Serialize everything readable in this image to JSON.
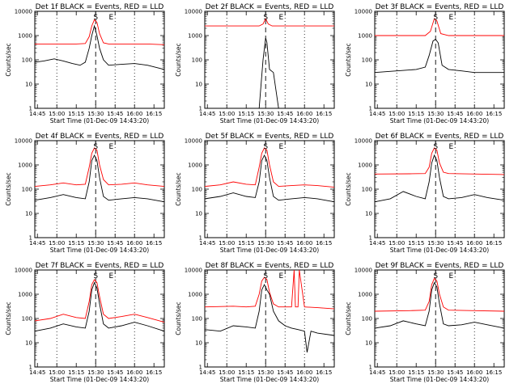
{
  "figure": {
    "xlabel": "Start Time (01-Dec-09 14:43:20)",
    "ylabel": "Counts/sec",
    "x_tick_labels": [
      "14:45",
      "15:00",
      "15:15",
      "15:30",
      "15:45",
      "16:00",
      "16:15"
    ],
    "y_tick_labels": [
      "1",
      "10",
      "100",
      "1000",
      "10000"
    ],
    "marker_labels": [
      "S",
      "E"
    ],
    "colors": {
      "events": "#000000",
      "lld": "#ff0000"
    }
  },
  "chart_data": [
    {
      "type": "line",
      "title": "Det 1f BLACK = Events, RED = LLD",
      "xlabel": "Start Time (01-Dec-09 14:43:20)",
      "ylabel": "Counts/sec",
      "yscale": "log",
      "ylim": [
        1,
        10000
      ],
      "x_range": [
        "14:43",
        "16:23"
      ],
      "vertical_lines": {
        "dotted": [
          "15:00",
          "15:45",
          "16:00"
        ],
        "dashed": "15:30"
      },
      "markers": [
        {
          "label": "S",
          "x": "15:30"
        },
        {
          "label": "E",
          "x": "15:42"
        }
      ],
      "series": [
        {
          "name": "LLD",
          "color": "#ff0000",
          "x": [
            "14:43",
            "14:55",
            "15:05",
            "15:15",
            "15:22",
            "15:25",
            "15:27",
            "15:29",
            "15:31",
            "15:33",
            "15:36",
            "15:40",
            "15:50",
            "16:00",
            "16:10",
            "16:23"
          ],
          "y": [
            450,
            450,
            450,
            450,
            470,
            900,
            2500,
            4500,
            3500,
            1200,
            500,
            450,
            450,
            450,
            450,
            420
          ]
        },
        {
          "name": "Events",
          "color": "#000000",
          "x": [
            "14:43",
            "14:50",
            "14:58",
            "15:05",
            "15:12",
            "15:18",
            "15:22",
            "15:25",
            "15:27",
            "15:29",
            "15:31",
            "15:33",
            "15:36",
            "15:40",
            "15:50",
            "16:00",
            "16:10",
            "16:23"
          ],
          "y": [
            80,
            90,
            110,
            90,
            70,
            60,
            80,
            300,
            1000,
            2500,
            1000,
            300,
            100,
            60,
            65,
            70,
            60,
            40
          ]
        }
      ]
    },
    {
      "type": "line",
      "title": "Det 2f BLACK = Events, RED = LLD",
      "xlabel": "Start Time (01-Dec-09 14:43:20)",
      "ylabel": "Counts/sec",
      "yscale": "log",
      "ylim": [
        1,
        10000
      ],
      "x_range": [
        "14:43",
        "16:23"
      ],
      "vertical_lines": {
        "dotted": [
          "15:00",
          "15:45",
          "16:00"
        ],
        "dashed": "15:30"
      },
      "markers": [
        {
          "label": "S",
          "x": "15:30"
        },
        {
          "label": "E",
          "x": "15:42"
        }
      ],
      "series": [
        {
          "name": "LLD",
          "color": "#ff0000",
          "x": [
            "14:43",
            "15:10",
            "15:25",
            "15:28",
            "15:30",
            "15:32",
            "15:35",
            "16:23"
          ],
          "y": [
            2500,
            2500,
            2500,
            3000,
            5000,
            3000,
            2500,
            2500
          ]
        },
        {
          "name": "Events",
          "color": "#000000",
          "x": [
            "14:43",
            "15:00",
            "15:20",
            "15:25",
            "15:28",
            "15:30",
            "15:31",
            "15:33",
            "15:36",
            "15:40",
            "16:00",
            "16:23"
          ],
          "y": [
            1,
            1,
            1,
            1,
            100,
            800,
            500,
            40,
            30,
            1,
            1,
            1
          ]
        }
      ]
    },
    {
      "type": "line",
      "title": "Det 3f BLACK = Events, RED = LLD",
      "xlabel": "Start Time (01-Dec-09 14:43:20)",
      "ylabel": "Counts/sec",
      "yscale": "log",
      "ylim": [
        1,
        10000
      ],
      "x_range": [
        "14:43",
        "16:23"
      ],
      "vertical_lines": {
        "dotted": [
          "15:00",
          "15:45",
          "16:00"
        ],
        "dashed": "15:30"
      },
      "markers": [
        {
          "label": "S",
          "x": "15:30"
        },
        {
          "label": "E",
          "x": "15:42"
        }
      ],
      "series": [
        {
          "name": "LLD",
          "color": "#ff0000",
          "x": [
            "14:43",
            "15:10",
            "15:22",
            "15:26",
            "15:29",
            "15:31",
            "15:34",
            "15:40",
            "16:23"
          ],
          "y": [
            1000,
            1000,
            1000,
            1500,
            5000,
            4000,
            1200,
            1000,
            1000
          ]
        },
        {
          "name": "Events",
          "color": "#000000",
          "x": [
            "14:43",
            "15:00",
            "15:15",
            "15:22",
            "15:25",
            "15:28",
            "15:30",
            "15:32",
            "15:35",
            "15:40",
            "15:50",
            "16:00",
            "16:23"
          ],
          "y": [
            30,
            35,
            40,
            50,
            150,
            600,
            700,
            500,
            60,
            40,
            35,
            30,
            30
          ]
        }
      ]
    },
    {
      "type": "line",
      "title": "Det 4f BLACK = Events, RED = LLD",
      "xlabel": "Start Time (01-Dec-09 14:43:20)",
      "ylabel": "Counts/sec",
      "yscale": "log",
      "ylim": [
        1,
        10000
      ],
      "x_range": [
        "14:43",
        "16:23"
      ],
      "vertical_lines": {
        "dotted": [
          "15:00",
          "15:45",
          "16:00"
        ],
        "dashed": "15:30"
      },
      "markers": [
        {
          "label": "S",
          "x": "15:30"
        },
        {
          "label": "E",
          "x": "15:42"
        }
      ],
      "series": [
        {
          "name": "LLD",
          "color": "#ff0000",
          "x": [
            "14:43",
            "14:55",
            "15:05",
            "15:15",
            "15:22",
            "15:25",
            "15:27",
            "15:29",
            "15:31",
            "15:33",
            "15:36",
            "15:40",
            "15:50",
            "16:00",
            "16:10",
            "16:23"
          ],
          "y": [
            130,
            150,
            180,
            150,
            160,
            800,
            3000,
            5000,
            4000,
            1000,
            250,
            150,
            160,
            180,
            150,
            130
          ]
        },
        {
          "name": "Events",
          "color": "#000000",
          "x": [
            "14:43",
            "14:55",
            "15:05",
            "15:15",
            "15:22",
            "15:25",
            "15:27",
            "15:29",
            "15:31",
            "15:33",
            "15:36",
            "15:40",
            "15:50",
            "16:00",
            "16:10",
            "16:23"
          ],
          "y": [
            35,
            45,
            60,
            45,
            40,
            200,
            1500,
            2500,
            1500,
            300,
            50,
            35,
            40,
            45,
            40,
            30
          ]
        }
      ]
    },
    {
      "type": "line",
      "title": "Det 5f BLACK = Events, RED = LLD",
      "xlabel": "Start Time (01-Dec-09 14:43:20)",
      "ylabel": "Counts/sec",
      "yscale": "log",
      "ylim": [
        1,
        10000
      ],
      "x_range": [
        "14:43",
        "16:23"
      ],
      "vertical_lines": {
        "dotted": [
          "15:00",
          "15:45",
          "16:00"
        ],
        "dashed": "15:30"
      },
      "markers": [
        {
          "label": "S",
          "x": "15:30"
        },
        {
          "label": "E",
          "x": "15:42"
        }
      ],
      "series": [
        {
          "name": "LLD",
          "color": "#ff0000",
          "x": [
            "14:43",
            "14:55",
            "15:05",
            "15:15",
            "15:22",
            "15:25",
            "15:27",
            "15:29",
            "15:31",
            "15:33",
            "15:36",
            "15:40",
            "15:50",
            "16:00",
            "16:10",
            "16:23"
          ],
          "y": [
            130,
            150,
            200,
            160,
            150,
            800,
            3000,
            5000,
            4000,
            1000,
            200,
            130,
            140,
            150,
            140,
            120
          ]
        },
        {
          "name": "Events",
          "color": "#000000",
          "x": [
            "14:43",
            "14:55",
            "15:05",
            "15:15",
            "15:22",
            "15:25",
            "15:27",
            "15:29",
            "15:31",
            "15:33",
            "15:36",
            "15:40",
            "15:50",
            "16:00",
            "16:10",
            "16:23"
          ],
          "y": [
            40,
            50,
            70,
            50,
            45,
            200,
            1500,
            2500,
            1500,
            300,
            50,
            35,
            40,
            45,
            40,
            30
          ]
        }
      ]
    },
    {
      "type": "line",
      "title": "Det 6f BLACK = Events, RED = LLD",
      "xlabel": "Start Time (01-Dec-09 14:43:20)",
      "ylabel": "Counts/sec",
      "yscale": "log",
      "ylim": [
        1,
        10000
      ],
      "x_range": [
        "14:43",
        "16:23"
      ],
      "vertical_lines": {
        "dotted": [
          "15:00",
          "15:45",
          "16:00"
        ],
        "dashed": "15:30"
      },
      "markers": [
        {
          "label": "S",
          "x": "15:30"
        },
        {
          "label": "E",
          "x": "15:42"
        }
      ],
      "series": [
        {
          "name": "LLD",
          "color": "#ff0000",
          "x": [
            "14:43",
            "15:10",
            "15:22",
            "15:25",
            "15:27",
            "15:29",
            "15:31",
            "15:33",
            "15:36",
            "15:40",
            "16:23"
          ],
          "y": [
            420,
            430,
            440,
            800,
            3000,
            5000,
            4000,
            1200,
            500,
            440,
            400
          ]
        },
        {
          "name": "Events",
          "color": "#000000",
          "x": [
            "14:43",
            "14:55",
            "15:05",
            "15:15",
            "15:22",
            "15:25",
            "15:27",
            "15:29",
            "15:31",
            "15:33",
            "15:36",
            "15:40",
            "15:50",
            "16:00",
            "16:10",
            "16:23"
          ],
          "y": [
            30,
            40,
            80,
            50,
            40,
            200,
            1200,
            2500,
            1500,
            300,
            50,
            40,
            45,
            60,
            45,
            35
          ]
        }
      ]
    },
    {
      "type": "line",
      "title": "Det 7f BLACK = Events, RED = LLD",
      "xlabel": "Start Time (01-Dec-09 14:43:20)",
      "ylabel": "Counts/sec",
      "yscale": "log",
      "ylim": [
        1,
        10000
      ],
      "x_range": [
        "14:43",
        "16:23"
      ],
      "vertical_lines": {
        "dotted": [
          "15:00",
          "15:45",
          "16:00"
        ],
        "dashed": "15:30"
      },
      "markers": [
        {
          "label": "S",
          "x": "15:30"
        },
        {
          "label": "E",
          "x": "15:42"
        }
      ],
      "series": [
        {
          "name": "LLD",
          "color": "#ff0000",
          "x": [
            "14:43",
            "14:55",
            "15:05",
            "15:15",
            "15:22",
            "15:25",
            "15:27",
            "15:29",
            "15:31",
            "15:33",
            "15:36",
            "15:40",
            "15:50",
            "16:00",
            "16:10",
            "16:23"
          ],
          "y": [
            80,
            100,
            150,
            110,
            100,
            500,
            2500,
            4000,
            3000,
            800,
            150,
            100,
            120,
            150,
            110,
            70
          ]
        },
        {
          "name": "Events",
          "color": "#000000",
          "x": [
            "14:43",
            "14:55",
            "15:05",
            "15:15",
            "15:22",
            "15:25",
            "15:27",
            "15:29",
            "15:31",
            "15:33",
            "15:36",
            "15:40",
            "15:50",
            "16:00",
            "16:10",
            "16:23"
          ],
          "y": [
            30,
            40,
            60,
            45,
            40,
            200,
            1500,
            3000,
            1800,
            400,
            60,
            40,
            50,
            70,
            50,
            30
          ]
        }
      ]
    },
    {
      "type": "line",
      "title": "Det 8f BLACK = Events, RED = LLD",
      "xlabel": "Start Time (01-Dec-09 14:43:20)",
      "ylabel": "Counts/sec",
      "yscale": "log",
      "ylim": [
        1,
        10000
      ],
      "x_range": [
        "14:43",
        "16:23"
      ],
      "vertical_lines": {
        "dotted": [
          "15:00",
          "15:45",
          "16:00"
        ],
        "dashed": "15:30"
      },
      "markers": [
        {
          "label": "S",
          "x": "15:30"
        },
        {
          "label": "E",
          "x": "15:42"
        }
      ],
      "series": [
        {
          "name": "LLD",
          "color": "#ff0000",
          "x": [
            "14:43",
            "15:05",
            "15:15",
            "15:22",
            "15:25",
            "15:27",
            "15:29",
            "15:31",
            "15:33",
            "15:36",
            "15:40",
            "15:50",
            "15:52",
            "15:53",
            "15:55",
            "15:56",
            "16:00",
            "16:10",
            "16:23"
          ],
          "y": [
            300,
            320,
            300,
            320,
            1000,
            3500,
            5000,
            4000,
            1200,
            400,
            300,
            300,
            10000,
            300,
            300,
            10000,
            300,
            280,
            250
          ]
        },
        {
          "name": "Events",
          "color": "#000000",
          "x": [
            "14:43",
            "14:55",
            "15:05",
            "15:15",
            "15:22",
            "15:25",
            "15:27",
            "15:29",
            "15:31",
            "15:33",
            "15:36",
            "15:40",
            "15:45",
            "15:50",
            "15:55",
            "16:00",
            "16:02",
            "16:05",
            "16:10",
            "16:23"
          ],
          "y": [
            35,
            30,
            50,
            45,
            40,
            200,
            1500,
            2500,
            1500,
            1000,
            200,
            80,
            50,
            40,
            35,
            30,
            4,
            30,
            25,
            20
          ]
        }
      ]
    },
    {
      "type": "line",
      "title": "Det 9f BLACK = Events, RED = LLD",
      "xlabel": "Start Time (01-Dec-09 14:43:20)",
      "ylabel": "Counts/sec",
      "yscale": "log",
      "ylim": [
        1,
        10000
      ],
      "x_range": [
        "14:43",
        "16:23"
      ],
      "vertical_lines": {
        "dotted": [
          "15:00",
          "15:45",
          "16:00"
        ],
        "dashed": "15:30"
      },
      "markers": [
        {
          "label": "S",
          "x": "15:30"
        },
        {
          "label": "E",
          "x": "15:42"
        }
      ],
      "series": [
        {
          "name": "LLD",
          "color": "#ff0000",
          "x": [
            "14:43",
            "15:10",
            "15:22",
            "15:25",
            "15:27",
            "15:29",
            "15:31",
            "15:33",
            "15:36",
            "15:40",
            "16:00",
            "16:23"
          ],
          "y": [
            200,
            210,
            220,
            500,
            2500,
            4500,
            3500,
            1000,
            300,
            220,
            210,
            200
          ]
        },
        {
          "name": "Events",
          "color": "#000000",
          "x": [
            "14:43",
            "14:55",
            "15:05",
            "15:15",
            "15:22",
            "15:25",
            "15:27",
            "15:29",
            "15:31",
            "15:33",
            "15:36",
            "15:40",
            "15:50",
            "16:00",
            "16:10",
            "16:23"
          ],
          "y": [
            40,
            50,
            80,
            60,
            50,
            200,
            1500,
            3000,
            2000,
            400,
            60,
            50,
            55,
            70,
            55,
            40
          ]
        }
      ]
    }
  ]
}
